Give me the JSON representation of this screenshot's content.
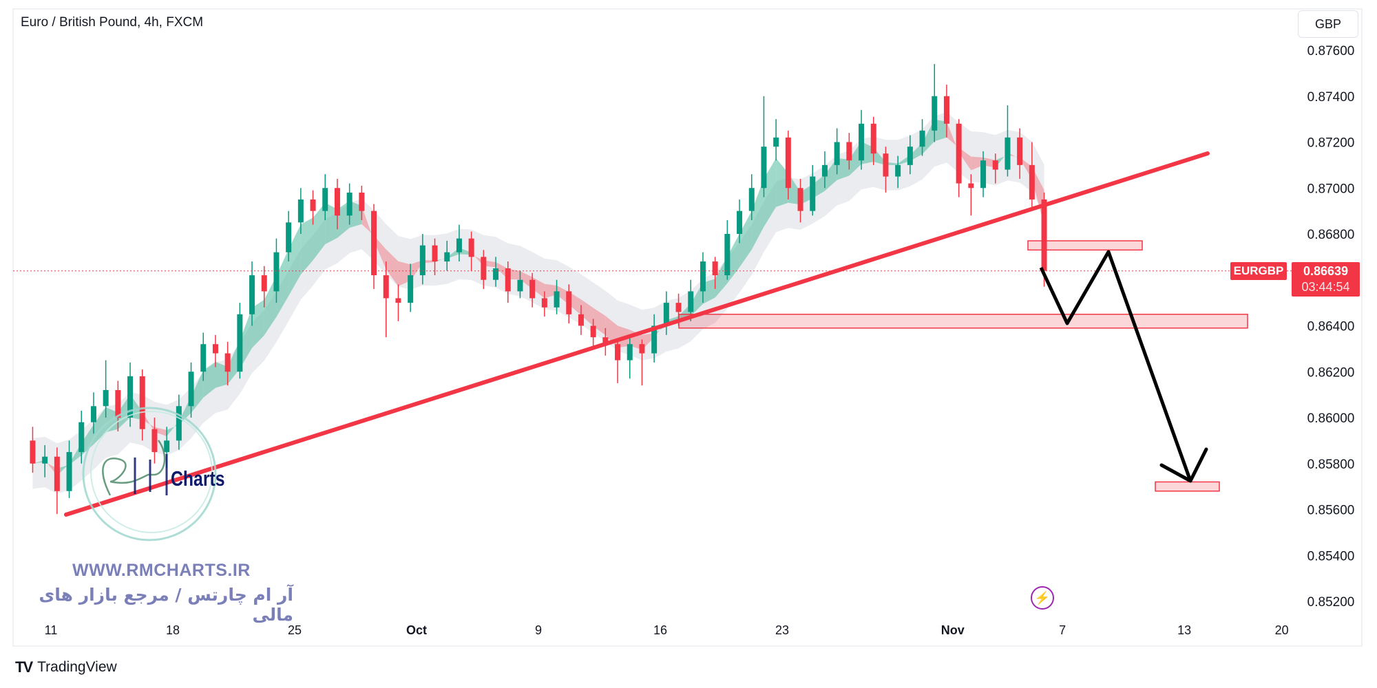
{
  "header": {
    "title": "Euro / British Pound, 4h, FXCM",
    "currency_button": "GBP"
  },
  "price_label": {
    "symbol": "EURGBP",
    "price": "0.86639",
    "countdown": "03:44:54",
    "color": "#f23645"
  },
  "watermark": {
    "url": "WWW.RMCHARTS.IR",
    "persian": "آر ام چارتس / مرجع بازار های مالی",
    "logo_text": "RM Charts"
  },
  "footer": {
    "brand": "TradingView"
  },
  "icons": {
    "lightning": "lightning-icon",
    "logo": "tradingview-logo"
  },
  "colors": {
    "up": "#089981",
    "down": "#f23645",
    "trendline": "#f23645",
    "zone": "#f23645",
    "projection": "#000000"
  },
  "chart_data": {
    "type": "candlestick",
    "symbol": "EURGBP",
    "timeframe": "4h",
    "ylim": [
      0.851,
      0.8772
    ],
    "y_ticks": [
      "0.87600",
      "0.87400",
      "0.87200",
      "0.87000",
      "0.86800",
      "0.86400",
      "0.86200",
      "0.86000",
      "0.85800",
      "0.85600",
      "0.85400",
      "0.85200"
    ],
    "x_ticks": [
      "11",
      "18",
      "25",
      "Oct",
      "9",
      "16",
      "23",
      "Nov",
      "7",
      "13",
      "20"
    ],
    "grid": false,
    "last_price": 0.86639,
    "zones": [
      {
        "name": "resistance",
        "from": 0.8673,
        "to": 0.8677
      },
      {
        "name": "support",
        "from": 0.8639,
        "to": 0.8645
      },
      {
        "name": "target",
        "from": 0.8568,
        "to": 0.8572
      }
    ],
    "ohlc": [
      [
        0.859,
        0.8596,
        0.8576,
        0.858
      ],
      [
        0.858,
        0.8588,
        0.8574,
        0.8583
      ],
      [
        0.8583,
        0.8587,
        0.8558,
        0.8568
      ],
      [
        0.8568,
        0.859,
        0.8565,
        0.8585
      ],
      [
        0.8585,
        0.8603,
        0.858,
        0.8598
      ],
      [
        0.8598,
        0.8611,
        0.8593,
        0.8605
      ],
      [
        0.8605,
        0.8625,
        0.86,
        0.8612
      ],
      [
        0.8612,
        0.8616,
        0.8594,
        0.86
      ],
      [
        0.86,
        0.8624,
        0.8596,
        0.8618
      ],
      [
        0.8618,
        0.8621,
        0.859,
        0.8595
      ],
      [
        0.8595,
        0.86,
        0.858,
        0.8585
      ],
      [
        0.8585,
        0.8596,
        0.8578,
        0.859
      ],
      [
        0.859,
        0.861,
        0.8586,
        0.8605
      ],
      [
        0.8605,
        0.8624,
        0.86,
        0.862
      ],
      [
        0.862,
        0.8637,
        0.8616,
        0.8632
      ],
      [
        0.8632,
        0.8636,
        0.8622,
        0.8628
      ],
      [
        0.8628,
        0.8633,
        0.8614,
        0.862
      ],
      [
        0.862,
        0.865,
        0.8617,
        0.8645
      ],
      [
        0.8645,
        0.8668,
        0.864,
        0.8662
      ],
      [
        0.8662,
        0.8666,
        0.8648,
        0.8655
      ],
      [
        0.8655,
        0.8678,
        0.865,
        0.8672
      ],
      [
        0.8672,
        0.869,
        0.8668,
        0.8685
      ],
      [
        0.8685,
        0.87,
        0.868,
        0.8695
      ],
      [
        0.8695,
        0.8699,
        0.8684,
        0.869
      ],
      [
        0.869,
        0.8706,
        0.8686,
        0.87
      ],
      [
        0.87,
        0.8704,
        0.8682,
        0.8688
      ],
      [
        0.8688,
        0.8702,
        0.8684,
        0.8698
      ],
      [
        0.8698,
        0.8701,
        0.8686,
        0.869
      ],
      [
        0.869,
        0.8693,
        0.8656,
        0.8662
      ],
      [
        0.8662,
        0.8668,
        0.8635,
        0.8652
      ],
      [
        0.8652,
        0.8658,
        0.8642,
        0.865
      ],
      [
        0.865,
        0.8667,
        0.8646,
        0.8662
      ],
      [
        0.8662,
        0.868,
        0.8658,
        0.8675
      ],
      [
        0.8675,
        0.8678,
        0.8662,
        0.8668
      ],
      [
        0.8668,
        0.8677,
        0.8664,
        0.8672
      ],
      [
        0.8672,
        0.8684,
        0.8668,
        0.8678
      ],
      [
        0.8678,
        0.8681,
        0.8664,
        0.867
      ],
      [
        0.867,
        0.8673,
        0.8656,
        0.866
      ],
      [
        0.866,
        0.867,
        0.8657,
        0.8665
      ],
      [
        0.8665,
        0.8668,
        0.865,
        0.8655
      ],
      [
        0.8655,
        0.8664,
        0.8652,
        0.866
      ],
      [
        0.866,
        0.8663,
        0.8648,
        0.8652
      ],
      [
        0.8652,
        0.8655,
        0.8644,
        0.8648
      ],
      [
        0.8648,
        0.866,
        0.8645,
        0.8655
      ],
      [
        0.8655,
        0.8658,
        0.8641,
        0.8645
      ],
      [
        0.8645,
        0.8649,
        0.8636,
        0.864
      ],
      [
        0.864,
        0.8643,
        0.863,
        0.8635
      ],
      [
        0.8635,
        0.8639,
        0.8627,
        0.8632
      ],
      [
        0.8632,
        0.8634,
        0.8615,
        0.8625
      ],
      [
        0.8625,
        0.8636,
        0.8617,
        0.8632
      ],
      [
        0.8632,
        0.8634,
        0.8614,
        0.8628
      ],
      [
        0.8628,
        0.8645,
        0.8624,
        0.864
      ],
      [
        0.864,
        0.8655,
        0.8636,
        0.865
      ],
      [
        0.865,
        0.8654,
        0.864,
        0.8646
      ],
      [
        0.8646,
        0.866,
        0.8642,
        0.8655
      ],
      [
        0.8655,
        0.8672,
        0.865,
        0.8668
      ],
      [
        0.8668,
        0.867,
        0.8656,
        0.8662
      ],
      [
        0.8662,
        0.8686,
        0.866,
        0.868
      ],
      [
        0.868,
        0.8695,
        0.8676,
        0.869
      ],
      [
        0.869,
        0.8706,
        0.8686,
        0.87
      ],
      [
        0.87,
        0.874,
        0.8696,
        0.8718
      ],
      [
        0.8718,
        0.873,
        0.8712,
        0.8722
      ],
      [
        0.8722,
        0.8725,
        0.8695,
        0.87
      ],
      [
        0.87,
        0.8704,
        0.8685,
        0.869
      ],
      [
        0.869,
        0.871,
        0.8688,
        0.8705
      ],
      [
        0.8705,
        0.8716,
        0.87,
        0.871
      ],
      [
        0.871,
        0.8726,
        0.8706,
        0.872
      ],
      [
        0.872,
        0.8724,
        0.8708,
        0.8712
      ],
      [
        0.8712,
        0.8734,
        0.8708,
        0.8728
      ],
      [
        0.8728,
        0.8731,
        0.871,
        0.8715
      ],
      [
        0.8715,
        0.8718,
        0.8698,
        0.8705
      ],
      [
        0.8705,
        0.8714,
        0.87,
        0.871
      ],
      [
        0.871,
        0.8723,
        0.8706,
        0.8718
      ],
      [
        0.8718,
        0.873,
        0.8714,
        0.8725
      ],
      [
        0.8725,
        0.8754,
        0.872,
        0.874
      ],
      [
        0.874,
        0.8745,
        0.8722,
        0.8728
      ],
      [
        0.8728,
        0.873,
        0.8696,
        0.8702
      ],
      [
        0.8702,
        0.8706,
        0.8688,
        0.87
      ],
      [
        0.87,
        0.8716,
        0.8696,
        0.8712
      ],
      [
        0.8712,
        0.8715,
        0.8702,
        0.8708
      ],
      [
        0.8708,
        0.8736,
        0.8705,
        0.8722
      ],
      [
        0.8722,
        0.8726,
        0.8704,
        0.871
      ],
      [
        0.871,
        0.872,
        0.869,
        0.8695
      ],
      [
        0.8695,
        0.8698,
        0.8657,
        0.86639
      ]
    ]
  }
}
